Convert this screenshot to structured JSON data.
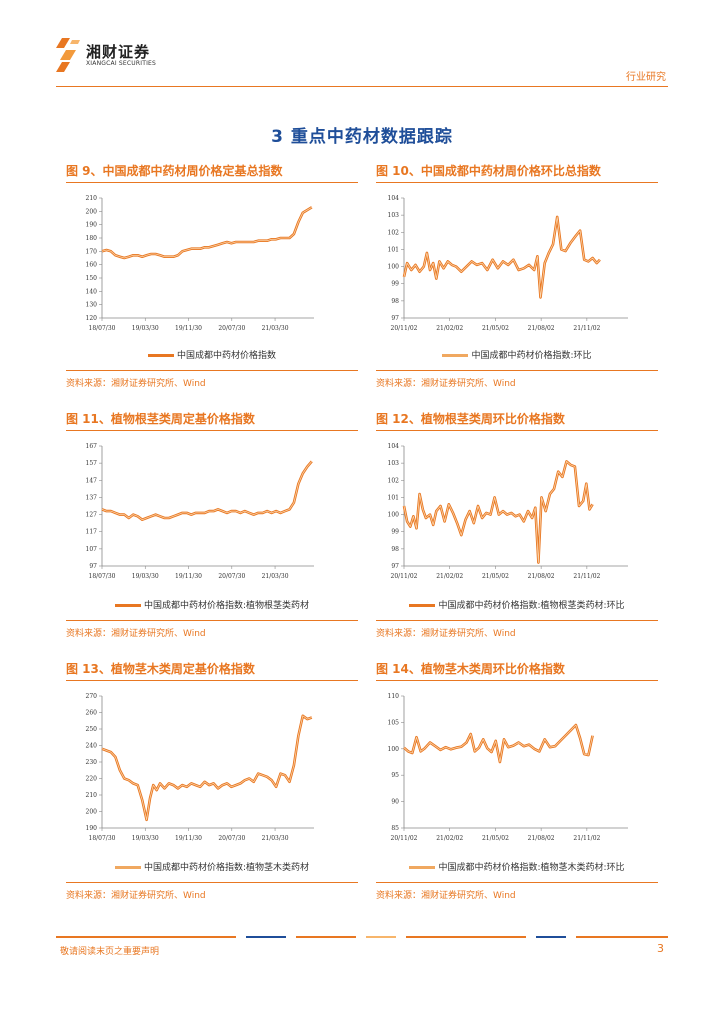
{
  "header": {
    "logo_cn": "湘财证券",
    "logo_en": "XIANGCAI SECURITIES",
    "category": "行业研究"
  },
  "section_title": "3 重点中药材数据跟踪",
  "figures": [
    {
      "title": "图 9、中国成都中药材周价格定基总指数",
      "legend": "中国成都中药材价格指数",
      "source": "资料来源：湘财证券研究所、Wind"
    },
    {
      "title": "图 10、中国成都中药材周价格环比总指数",
      "legend": "中国成都中药材价格指数:环比",
      "source": "资料来源：湘财证券研究所、Wind"
    },
    {
      "title": "图 11、植物根茎类周定基价格指数",
      "legend": "中国成都中药材价格指数:植物根茎类药材",
      "source": "资料来源：湘财证券研究所、Wind"
    },
    {
      "title": "图 12、植物根茎类周环比价格指数",
      "legend": "中国成都中药材价格指数:植物根茎类药材:环比",
      "source": "资料来源：湘财证券研究所、Wind"
    },
    {
      "title": "图 13、植物茎木类周定基价格指数",
      "legend": "中国成都中药材价格指数:植物茎木类药材",
      "source": "资料来源：湘财证券研究所、Wind"
    },
    {
      "title": "图 14、植物茎木类周环比价格指数",
      "legend": "中国成都中药材价格指数:植物茎木类药材:环比",
      "source": "资料来源：湘财证券研究所、Wind"
    }
  ],
  "footer": {
    "disclaimer": "敬请阅读末页之重要声明",
    "page": "3"
  },
  "colors": {
    "accent": "#E87722",
    "title_blue": "#1F4E99",
    "line_light": "#F0A860"
  },
  "chart_data": [
    {
      "type": "line",
      "title": "中国成都中药材周价格定基总指数",
      "series_name": "中国成都中药材价格指数",
      "ylim": [
        120,
        210
      ],
      "yticks": [
        120,
        130,
        140,
        150,
        160,
        170,
        180,
        190,
        200,
        210
      ],
      "xticks": [
        "18/07/30",
        "19/03/30",
        "19/11/30",
        "20/07/30",
        "21/03/30"
      ],
      "x_span": 9.5,
      "points": [
        [
          0,
          170
        ],
        [
          0.2,
          171
        ],
        [
          0.4,
          170
        ],
        [
          0.6,
          167
        ],
        [
          0.8,
          166
        ],
        [
          1.0,
          165
        ],
        [
          1.2,
          166
        ],
        [
          1.4,
          167
        ],
        [
          1.6,
          167
        ],
        [
          1.8,
          166
        ],
        [
          2.0,
          167
        ],
        [
          2.2,
          168
        ],
        [
          2.4,
          168
        ],
        [
          2.6,
          167
        ],
        [
          2.8,
          166
        ],
        [
          3.0,
          166
        ],
        [
          3.2,
          166
        ],
        [
          3.4,
          167
        ],
        [
          3.6,
          170
        ],
        [
          3.8,
          171
        ],
        [
          4.0,
          172
        ],
        [
          4.2,
          172
        ],
        [
          4.4,
          172
        ],
        [
          4.6,
          173
        ],
        [
          4.8,
          173
        ],
        [
          5.0,
          174
        ],
        [
          5.2,
          175
        ],
        [
          5.4,
          176
        ],
        [
          5.6,
          177
        ],
        [
          5.8,
          176
        ],
        [
          6.0,
          177
        ],
        [
          6.2,
          177
        ],
        [
          6.4,
          177
        ],
        [
          6.6,
          177
        ],
        [
          6.8,
          177
        ],
        [
          7.0,
          178
        ],
        [
          7.2,
          178
        ],
        [
          7.4,
          178
        ],
        [
          7.6,
          179
        ],
        [
          7.8,
          179
        ],
        [
          8.0,
          180
        ],
        [
          8.2,
          180
        ],
        [
          8.4,
          180
        ],
        [
          8.6,
          183
        ],
        [
          8.8,
          192
        ],
        [
          9.0,
          199
        ],
        [
          9.2,
          201
        ],
        [
          9.4,
          203
        ]
      ]
    },
    {
      "type": "line",
      "title": "中国成都中药材周价格环比总指数",
      "series_name": "中国成都中药材价格指数:环比",
      "ylim": [
        97,
        104
      ],
      "yticks": [
        97,
        98,
        99,
        100,
        101,
        102,
        103,
        104
      ],
      "xticks": [
        "20/11/02",
        "21/02/02",
        "21/05/02",
        "21/08/02",
        "21/11/02"
      ],
      "x_span": 4.3,
      "points": [
        [
          0,
          99.4
        ],
        [
          0.06,
          100.2
        ],
        [
          0.14,
          99.8
        ],
        [
          0.22,
          100.1
        ],
        [
          0.3,
          99.7
        ],
        [
          0.38,
          100.0
        ],
        [
          0.44,
          100.8
        ],
        [
          0.5,
          99.8
        ],
        [
          0.56,
          100.2
        ],
        [
          0.62,
          99.3
        ],
        [
          0.68,
          100.3
        ],
        [
          0.76,
          99.9
        ],
        [
          0.84,
          100.3
        ],
        [
          0.92,
          100.1
        ],
        [
          1.0,
          100.0
        ],
        [
          1.1,
          99.7
        ],
        [
          1.2,
          100.0
        ],
        [
          1.3,
          100.3
        ],
        [
          1.4,
          100.1
        ],
        [
          1.5,
          100.2
        ],
        [
          1.6,
          99.8
        ],
        [
          1.7,
          100.4
        ],
        [
          1.8,
          99.9
        ],
        [
          1.9,
          100.3
        ],
        [
          2.0,
          100.1
        ],
        [
          2.1,
          100.4
        ],
        [
          2.2,
          99.8
        ],
        [
          2.3,
          99.9
        ],
        [
          2.4,
          100.1
        ],
        [
          2.5,
          99.8
        ],
        [
          2.56,
          100.6
        ],
        [
          2.62,
          98.2
        ],
        [
          2.7,
          100.2
        ],
        [
          2.78,
          100.8
        ],
        [
          2.86,
          101.3
        ],
        [
          2.94,
          102.9
        ],
        [
          3.02,
          101.0
        ],
        [
          3.1,
          100.9
        ],
        [
          3.2,
          101.4
        ],
        [
          3.3,
          101.8
        ],
        [
          3.38,
          102.1
        ],
        [
          3.46,
          100.4
        ],
        [
          3.54,
          100.3
        ],
        [
          3.62,
          100.5
        ],
        [
          3.7,
          100.2
        ],
        [
          3.76,
          100.4
        ]
      ]
    },
    {
      "type": "line",
      "title": "植物根茎类周定基价格指数",
      "series_name": "中国成都中药材价格指数:植物根茎类药材",
      "ylim": [
        97,
        167
      ],
      "yticks": [
        97,
        107,
        117,
        127,
        137,
        147,
        157,
        167
      ],
      "xticks": [
        "18/07/30",
        "19/03/30",
        "19/11/30",
        "20/07/30",
        "21/03/30"
      ],
      "x_span": 9.5,
      "points": [
        [
          0,
          130
        ],
        [
          0.2,
          129
        ],
        [
          0.4,
          129
        ],
        [
          0.6,
          128
        ],
        [
          0.8,
          127
        ],
        [
          1.0,
          127
        ],
        [
          1.2,
          125
        ],
        [
          1.4,
          127
        ],
        [
          1.6,
          126
        ],
        [
          1.8,
          124
        ],
        [
          2.0,
          125
        ],
        [
          2.2,
          126
        ],
        [
          2.4,
          127
        ],
        [
          2.6,
          126
        ],
        [
          2.8,
          125
        ],
        [
          3.0,
          125
        ],
        [
          3.2,
          126
        ],
        [
          3.4,
          127
        ],
        [
          3.6,
          128
        ],
        [
          3.8,
          128
        ],
        [
          4.0,
          127
        ],
        [
          4.2,
          128
        ],
        [
          4.4,
          128
        ],
        [
          4.6,
          128
        ],
        [
          4.8,
          129
        ],
        [
          5.0,
          129
        ],
        [
          5.2,
          130
        ],
        [
          5.4,
          129
        ],
        [
          5.6,
          128
        ],
        [
          5.8,
          129
        ],
        [
          6.0,
          129
        ],
        [
          6.2,
          128
        ],
        [
          6.4,
          129
        ],
        [
          6.6,
          128
        ],
        [
          6.8,
          127
        ],
        [
          7.0,
          128
        ],
        [
          7.2,
          128
        ],
        [
          7.4,
          129
        ],
        [
          7.6,
          128
        ],
        [
          7.8,
          129
        ],
        [
          8.0,
          128
        ],
        [
          8.2,
          129
        ],
        [
          8.4,
          130
        ],
        [
          8.6,
          134
        ],
        [
          8.8,
          145
        ],
        [
          9.0,
          151
        ],
        [
          9.2,
          155
        ],
        [
          9.4,
          158
        ]
      ]
    },
    {
      "type": "line",
      "title": "植物根茎类周环比价格指数",
      "series_name": "中国成都中药材价格指数:植物根茎类药材:环比",
      "ylim": [
        97,
        104
      ],
      "yticks": [
        97,
        98,
        99,
        100,
        101,
        102,
        103,
        104
      ],
      "xticks": [
        "20/11/02",
        "21/02/02",
        "21/05/02",
        "21/08/02",
        "21/11/02"
      ],
      "x_span": 4.3,
      "points": [
        [
          0,
          100.5
        ],
        [
          0.06,
          99.6
        ],
        [
          0.12,
          99.3
        ],
        [
          0.18,
          99.9
        ],
        [
          0.24,
          99.2
        ],
        [
          0.3,
          101.2
        ],
        [
          0.36,
          100.3
        ],
        [
          0.42,
          99.8
        ],
        [
          0.5,
          100.0
        ],
        [
          0.56,
          99.4
        ],
        [
          0.62,
          100.2
        ],
        [
          0.7,
          100.5
        ],
        [
          0.78,
          99.6
        ],
        [
          0.86,
          100.6
        ],
        [
          0.94,
          100.1
        ],
        [
          1.02,
          99.5
        ],
        [
          1.1,
          98.8
        ],
        [
          1.18,
          99.7
        ],
        [
          1.26,
          100.2
        ],
        [
          1.34,
          99.5
        ],
        [
          1.42,
          100.5
        ],
        [
          1.5,
          99.8
        ],
        [
          1.58,
          100.1
        ],
        [
          1.66,
          100.0
        ],
        [
          1.74,
          101.0
        ],
        [
          1.82,
          100.0
        ],
        [
          1.9,
          100.2
        ],
        [
          1.98,
          100.0
        ],
        [
          2.06,
          100.1
        ],
        [
          2.14,
          99.9
        ],
        [
          2.22,
          100.0
        ],
        [
          2.3,
          99.6
        ],
        [
          2.38,
          100.2
        ],
        [
          2.46,
          99.8
        ],
        [
          2.52,
          100.4
        ],
        [
          2.58,
          97.2
        ],
        [
          2.64,
          101.0
        ],
        [
          2.72,
          100.2
        ],
        [
          2.8,
          101.2
        ],
        [
          2.88,
          101.5
        ],
        [
          2.96,
          102.5
        ],
        [
          3.04,
          102.2
        ],
        [
          3.12,
          103.1
        ],
        [
          3.2,
          102.9
        ],
        [
          3.28,
          102.8
        ],
        [
          3.36,
          100.5
        ],
        [
          3.44,
          100.8
        ],
        [
          3.5,
          101.8
        ],
        [
          3.56,
          100.3
        ],
        [
          3.62,
          100.6
        ]
      ]
    },
    {
      "type": "line",
      "title": "植物茎木类周定基价格指数",
      "series_name": "中国成都中药材价格指数:植物茎木类药材",
      "ylim": [
        190,
        270
      ],
      "yticks": [
        190,
        200,
        210,
        220,
        230,
        240,
        250,
        260,
        270
      ],
      "xticks": [
        "18/07/30",
        "19/03/30",
        "19/11/30",
        "20/07/30",
        "21/03/30"
      ],
      "x_span": 9.5,
      "points": [
        [
          0,
          238
        ],
        [
          0.2,
          237
        ],
        [
          0.4,
          236
        ],
        [
          0.6,
          233
        ],
        [
          0.8,
          225
        ],
        [
          1.0,
          220
        ],
        [
          1.2,
          219
        ],
        [
          1.4,
          217
        ],
        [
          1.6,
          216
        ],
        [
          1.8,
          207
        ],
        [
          2.0,
          195
        ],
        [
          2.15,
          208
        ],
        [
          2.3,
          216
        ],
        [
          2.45,
          213
        ],
        [
          2.6,
          217
        ],
        [
          2.8,
          214
        ],
        [
          3.0,
          217
        ],
        [
          3.2,
          216
        ],
        [
          3.4,
          214
        ],
        [
          3.6,
          216
        ],
        [
          3.8,
          215
        ],
        [
          4.0,
          217
        ],
        [
          4.2,
          216
        ],
        [
          4.4,
          215
        ],
        [
          4.6,
          218
        ],
        [
          4.8,
          216
        ],
        [
          5.0,
          217
        ],
        [
          5.2,
          214
        ],
        [
          5.4,
          216
        ],
        [
          5.6,
          217
        ],
        [
          5.8,
          215
        ],
        [
          6.0,
          216
        ],
        [
          6.2,
          217
        ],
        [
          6.4,
          219
        ],
        [
          6.6,
          220
        ],
        [
          6.8,
          218
        ],
        [
          7.0,
          223
        ],
        [
          7.2,
          222
        ],
        [
          7.4,
          221
        ],
        [
          7.6,
          219
        ],
        [
          7.8,
          215
        ],
        [
          8.0,
          223
        ],
        [
          8.2,
          222
        ],
        [
          8.4,
          218
        ],
        [
          8.6,
          228
        ],
        [
          8.8,
          246
        ],
        [
          9.0,
          258
        ],
        [
          9.2,
          256
        ],
        [
          9.4,
          257
        ]
      ]
    },
    {
      "type": "line",
      "title": "植物茎木类周环比价格指数",
      "series_name": "中国成都中药材价格指数:植物茎木类药材:环比",
      "ylim": [
        85,
        110
      ],
      "yticks": [
        85,
        90,
        95,
        100,
        105,
        110
      ],
      "xticks": [
        "20/11/02",
        "21/02/02",
        "21/05/02",
        "21/08/02",
        "21/11/02"
      ],
      "x_span": 4.3,
      "points": [
        [
          0,
          100.2
        ],
        [
          0.08,
          99.5
        ],
        [
          0.16,
          99.2
        ],
        [
          0.24,
          102.2
        ],
        [
          0.32,
          99.5
        ],
        [
          0.4,
          100.1
        ],
        [
          0.5,
          101.2
        ],
        [
          0.6,
          100.5
        ],
        [
          0.7,
          99.8
        ],
        [
          0.8,
          100.3
        ],
        [
          0.9,
          99.9
        ],
        [
          1.0,
          100.2
        ],
        [
          1.1,
          100.4
        ],
        [
          1.2,
          101.2
        ],
        [
          1.28,
          102.8
        ],
        [
          1.36,
          99.5
        ],
        [
          1.44,
          100.2
        ],
        [
          1.52,
          101.8
        ],
        [
          1.6,
          100.1
        ],
        [
          1.68,
          99.4
        ],
        [
          1.76,
          101.5
        ],
        [
          1.84,
          97.5
        ],
        [
          1.92,
          101.8
        ],
        [
          2.0,
          100.3
        ],
        [
          2.1,
          100.6
        ],
        [
          2.2,
          101.2
        ],
        [
          2.3,
          100.5
        ],
        [
          2.4,
          100.8
        ],
        [
          2.5,
          100.0
        ],
        [
          2.6,
          99.5
        ],
        [
          2.7,
          101.8
        ],
        [
          2.8,
          100.3
        ],
        [
          2.9,
          100.5
        ],
        [
          3.0,
          101.5
        ],
        [
          3.1,
          102.5
        ],
        [
          3.2,
          103.5
        ],
        [
          3.3,
          104.5
        ],
        [
          3.38,
          102.0
        ],
        [
          3.46,
          99.0
        ],
        [
          3.54,
          98.8
        ],
        [
          3.62,
          102.5
        ]
      ]
    }
  ]
}
